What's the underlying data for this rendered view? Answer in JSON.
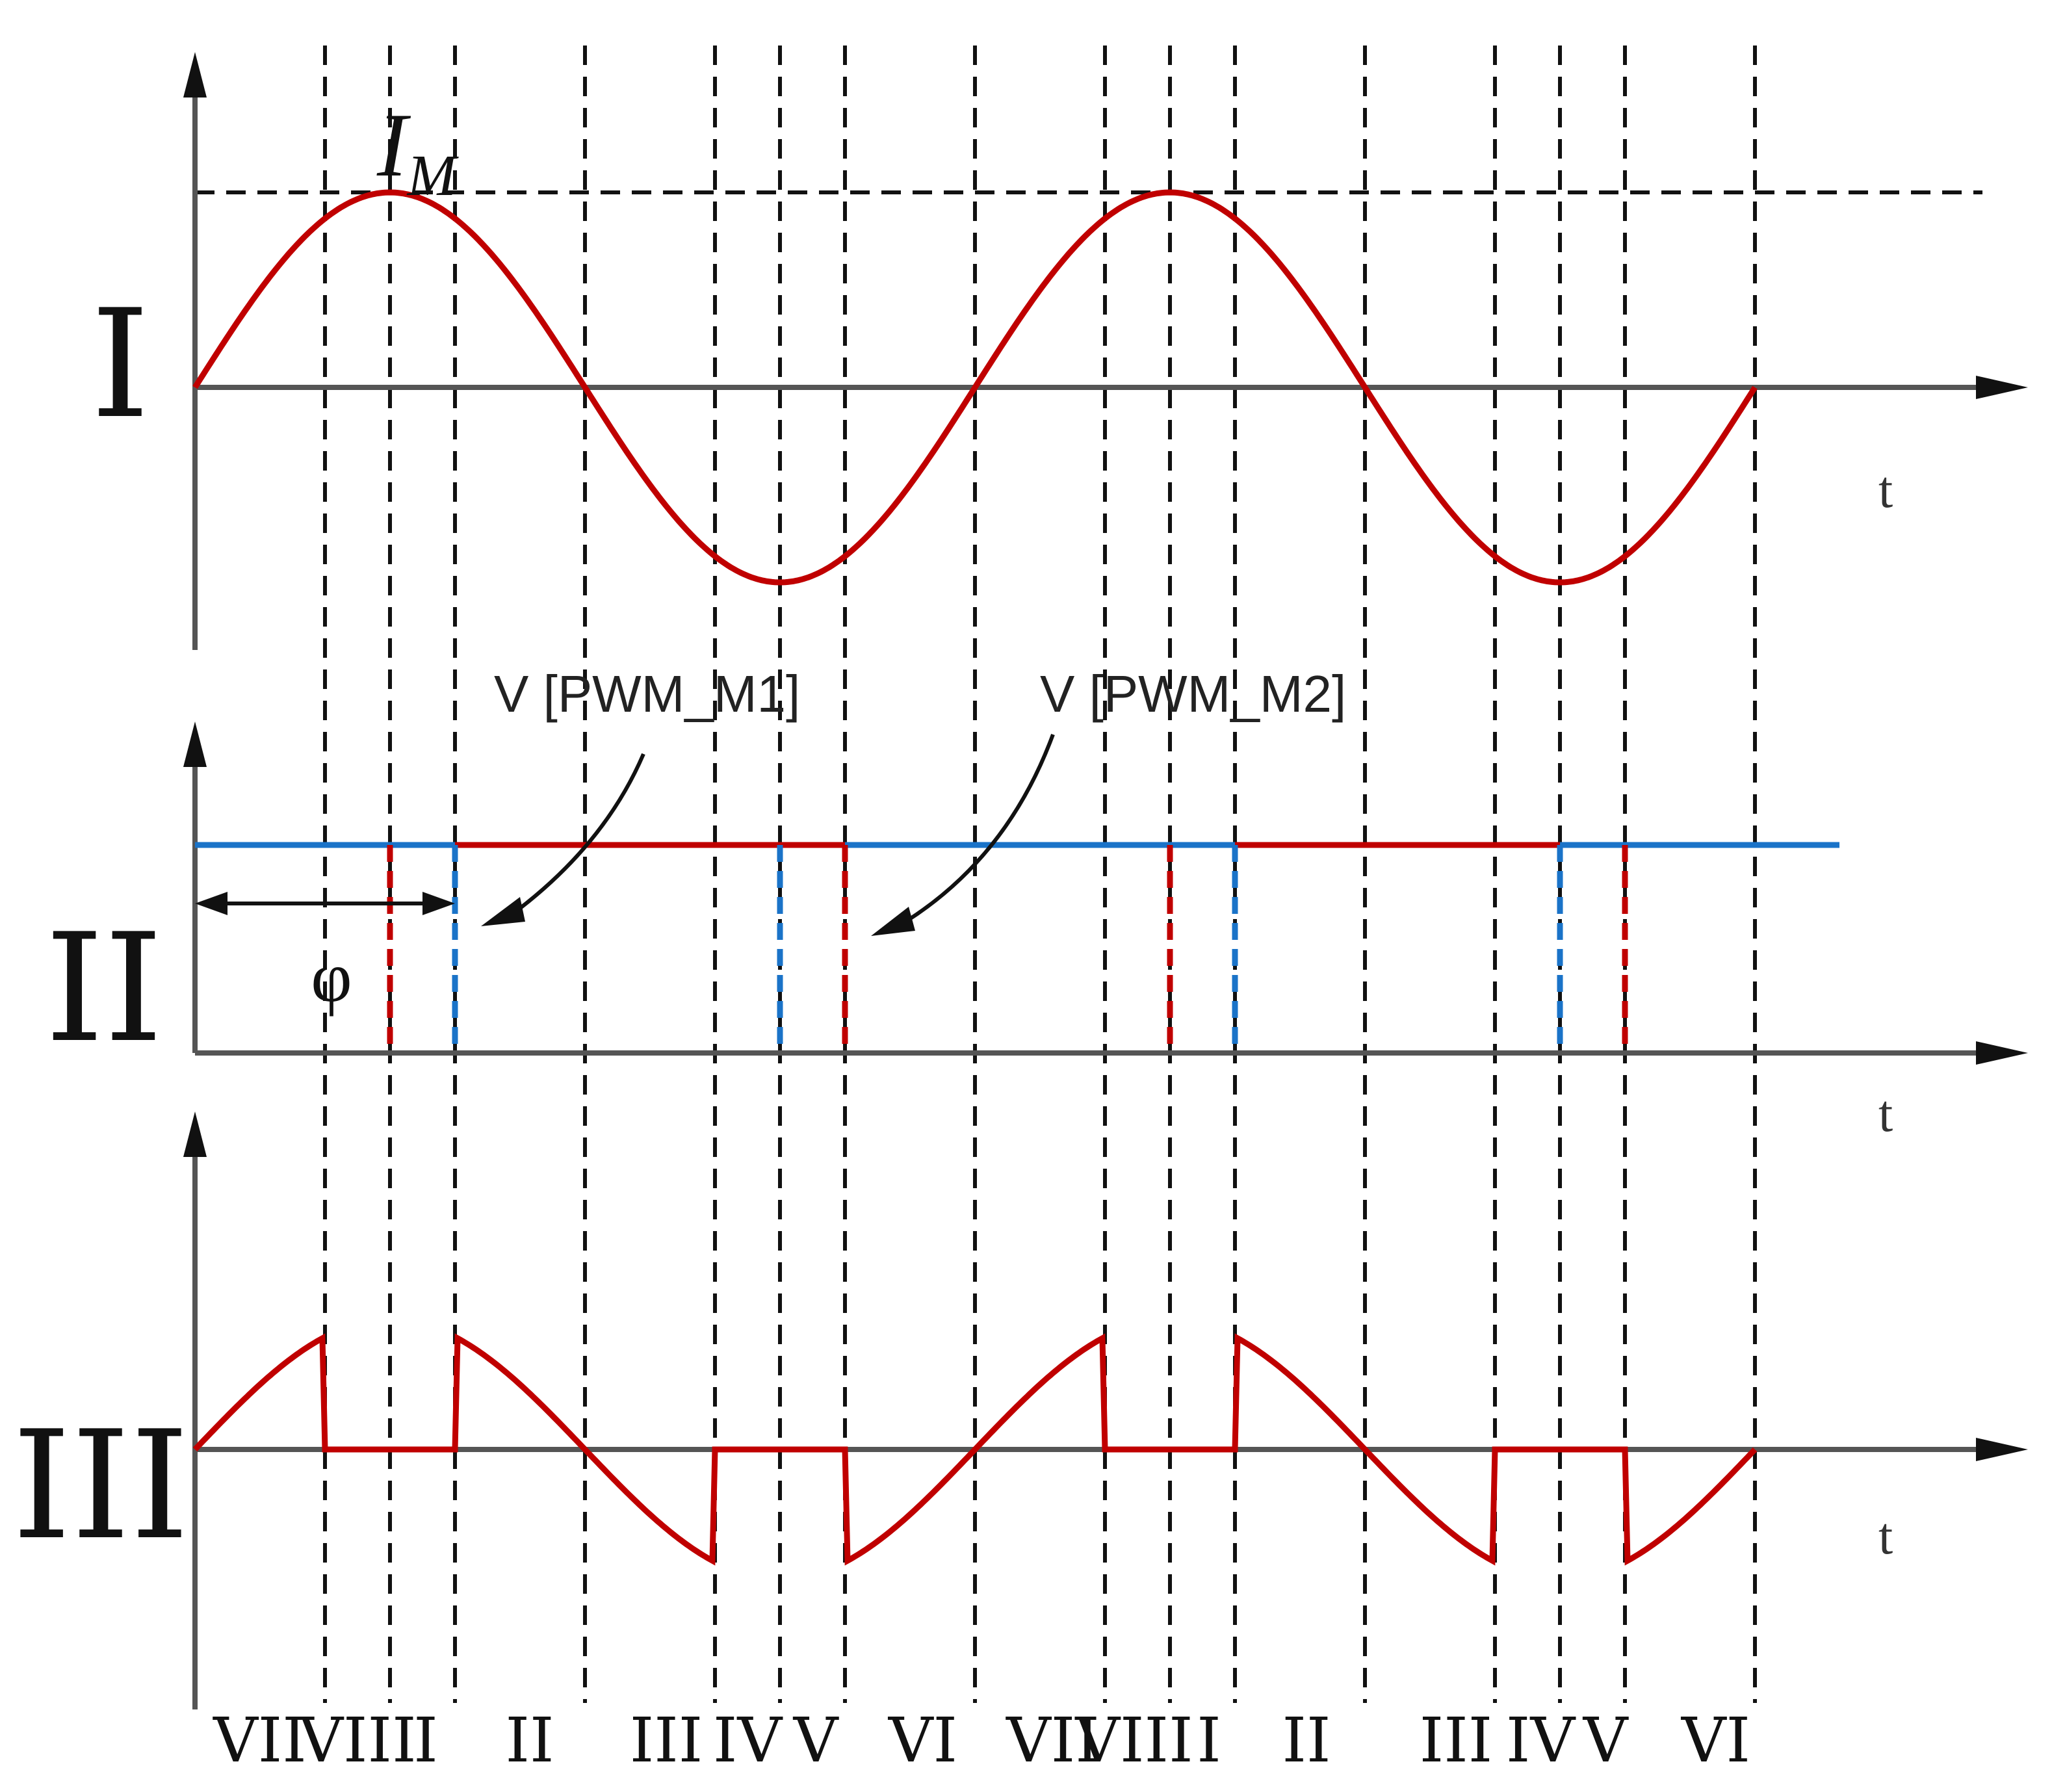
{
  "panels": [
    {
      "label": "I",
      "axis_label": "t"
    },
    {
      "label": "II",
      "axis_label": "t"
    },
    {
      "label": "III",
      "axis_label": "t"
    }
  ],
  "peak_label": "I",
  "peak_subscript": "M",
  "phase_label": "φ",
  "annotations": {
    "pwm_m1": "V [PWM_M1]",
    "pwm_m2": "V [PWM_M2]"
  },
  "sectors": [
    "VII",
    "VIII",
    "I",
    "II",
    "III",
    "IV",
    "V",
    "VI",
    "VII",
    "VIII",
    "I",
    "II",
    "III",
    "IV",
    "V",
    "VI"
  ],
  "colors": {
    "current_trace": "#c00000",
    "pwm_m1": "#c00000",
    "pwm_m2": "#1a73c8",
    "axis": "#555555",
    "guides": "#111111"
  }
}
